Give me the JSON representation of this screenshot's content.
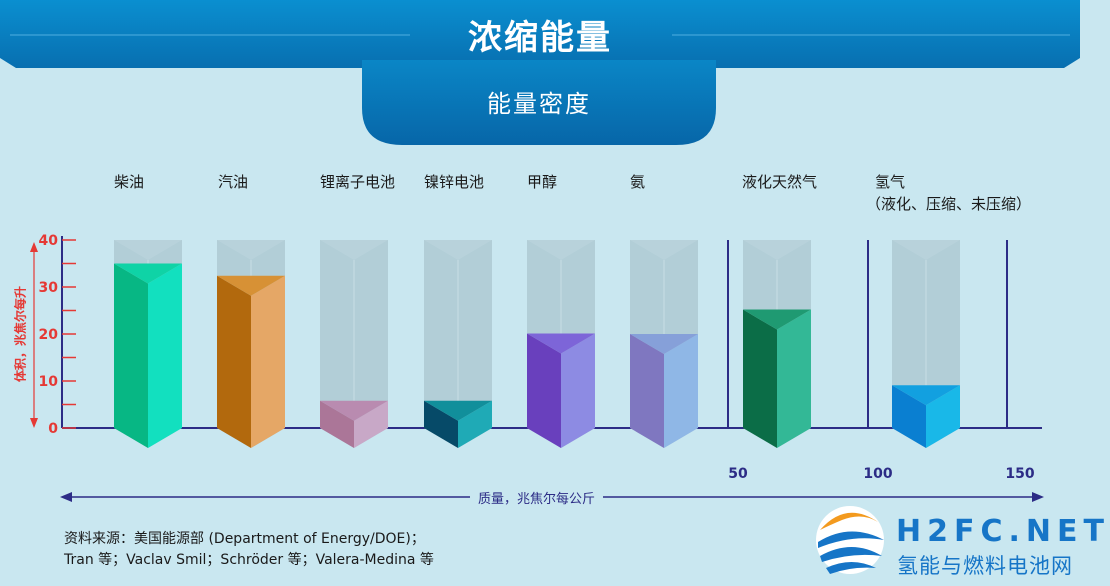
{
  "header": {
    "title": "浓缩能量",
    "subtitle": "能量密度"
  },
  "colors": {
    "banner": "#0b86c8",
    "axis": "#2c2c86",
    "y_axis_red": "#e53935",
    "ghost": "#a9c5cf"
  },
  "chart_data": {
    "type": "bar",
    "title": "",
    "ylabel": "体积，兆焦尔每升",
    "xlabel": "质量，兆焦尔每公斤",
    "y_ticks": [
      "0",
      "10",
      "20",
      "30",
      "40"
    ],
    "ylim": [
      0,
      40
    ],
    "x_ticks": [
      "50",
      "100",
      "150"
    ],
    "categories": [
      "柴油",
      "汽油",
      "锂离子电池",
      "镍锌电池",
      "甲醇",
      "氨",
      "液化天然气",
      "氢气"
    ],
    "category_note": "（液化、压缩、未压缩）",
    "series": [
      {
        "values": [
          35,
          32.4,
          5.8,
          5.8,
          20.1,
          20,
          25.2,
          9.1
        ],
        "colors": [
          [
            "#07b784",
            "#12e0bf",
            "#0fd3a6"
          ],
          [
            "#b2690d",
            "#e5a766",
            "#d79135"
          ],
          [
            "#ab7698",
            "#c8a8c7",
            "#b98bb0"
          ],
          [
            "#064a68",
            "#1faab6",
            "#118f9b"
          ],
          [
            "#6940bd",
            "#8d8be3",
            "#7d65d8"
          ],
          [
            "#7f77c0",
            "#8fb7e6",
            "#86a0d9"
          ],
          [
            "#0b6d47",
            "#33b896",
            "#1f9a72"
          ],
          [
            "#0a7fd1",
            "#19b8e8",
            "#12a0e0"
          ]
        ]
      }
    ]
  },
  "source": {
    "line1": "资料来源：美国能源部 (Department of Energy/DOE)；",
    "line2": "Tran 等；Vaclav Smil；Schröder 等；Valera-Medina 等"
  },
  "logo": {
    "name": "H2FC.NET",
    "sub": "氢能与燃料电池网"
  }
}
